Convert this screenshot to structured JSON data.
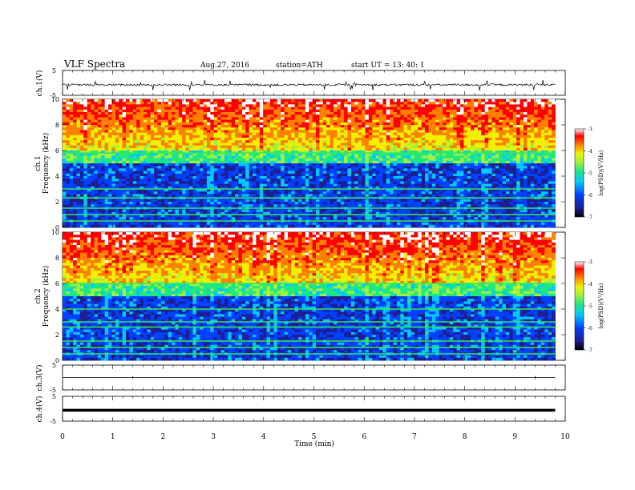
{
  "header": {
    "title": "VLF  Spectra",
    "date": "Aug.27, 2016",
    "station": "station=ATH",
    "start": "start  UT  =    13: 40: 1"
  },
  "colors": {
    "background": "#ffffff",
    "axis": "#000000",
    "trace": "#000000",
    "colormap": [
      "#000000",
      "#1e1e90",
      "#0040ff",
      "#00c8ff",
      "#20e880",
      "#a0f040",
      "#f0f000",
      "#ff8000",
      "#ff0000",
      "#ffffff"
    ]
  },
  "chart_data": [
    {
      "type": "line",
      "panel": "ch1-waveform",
      "ylabel": "ch.1(V)",
      "yticks": [
        "5",
        "-5"
      ],
      "ylim": [
        -5,
        5
      ],
      "xlim": [
        0,
        10
      ],
      "x_end": 9.8,
      "baseline": -0.8,
      "description": "dense time-series trace around -1 V with spikes"
    },
    {
      "type": "heatmap",
      "panel": "ch1-spectrogram",
      "ylabel": "Frequency  (kHz)",
      "channel_label": "ch.1",
      "yticks": [
        "0",
        "2",
        "4",
        "6",
        "8",
        "10"
      ],
      "ylim": [
        0,
        10
      ],
      "xlim": [
        0,
        10
      ],
      "colorbar": {
        "label": "log(PSD)(V²/Hz)",
        "ticks": [
          "-3",
          "-4",
          "-5",
          "-6",
          "-7"
        ],
        "range": [
          -7,
          -3
        ]
      },
      "horizontal_lines_khz": [
        5.8,
        3.0,
        2.3,
        1.5,
        1.0,
        0.5
      ],
      "description": "high-frequency bursts (6–10 kHz) reaching -3 to -4 log PSD; low background below 6 kHz"
    },
    {
      "type": "heatmap",
      "panel": "ch2-spectrogram",
      "ylabel": "Frequency  (kHz)",
      "channel_label": "ch.2",
      "yticks": [
        "0",
        "2",
        "4",
        "6",
        "8",
        "10"
      ],
      "ylim": [
        0,
        10
      ],
      "xlim": [
        0,
        10
      ],
      "colorbar": {
        "label": "log(PSD)(V²/Hz)",
        "ticks": [
          "-3",
          "-4",
          "-5",
          "-6",
          "-7"
        ],
        "range": [
          -7,
          -3
        ]
      },
      "horizontal_lines_khz": [
        6.0,
        4.0,
        3.0,
        2.6,
        1.5,
        1.0,
        0.5
      ],
      "description": "similar to ch.1 with strong activity 6–10 kHz"
    },
    {
      "type": "line",
      "panel": "ch3-waveform",
      "ylabel": "ch.3(V)",
      "yticks": [
        "5",
        "-5"
      ],
      "ylim": [
        -5,
        5
      ],
      "xlim": [
        0,
        10
      ],
      "x_end": 9.8,
      "baseline": 0.0
    },
    {
      "type": "line",
      "panel": "ch4-waveform",
      "ylabel": "ch.4(V)",
      "yticks": [
        "5",
        "-5"
      ],
      "ylim": [
        -5,
        5
      ],
      "xlim": [
        0,
        10
      ],
      "x_end": 9.8,
      "baseline": -0.6
    }
  ],
  "x_axis": {
    "label": "Time  (min)",
    "ticks": [
      "0",
      "1",
      "2",
      "3",
      "4",
      "5",
      "6",
      "7",
      "8",
      "9",
      "10"
    ]
  }
}
